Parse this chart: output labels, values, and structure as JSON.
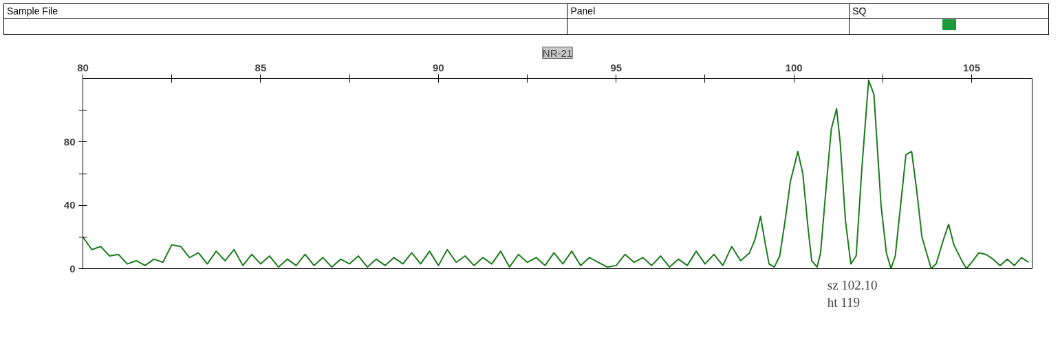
{
  "chart_data": {
    "type": "line",
    "title": "NR-21",
    "annotations": [
      "Sample File",
      "Panel",
      "SQ",
      "sz 102.10",
      "ht 119"
    ],
    "series": [
      {
        "color": "#1a7a1a",
        "x": [
          80,
          80.25,
          80.5,
          80.75,
          81,
          81.25,
          81.5,
          81.75,
          82,
          82.25,
          82.5,
          82.75,
          83,
          83.25,
          83.5,
          83.75,
          84,
          84.25,
          84.5,
          84.75,
          85,
          85.25,
          85.5,
          85.75,
          86,
          86.25,
          86.5,
          86.75,
          87,
          87.25,
          87.5,
          87.75,
          88,
          88.25,
          88.5,
          88.75,
          89,
          89.25,
          89.5,
          89.75,
          90,
          90.25,
          90.5,
          90.75,
          91,
          91.25,
          91.5,
          91.75,
          92,
          92.25,
          92.5,
          92.75,
          93,
          93.25,
          93.5,
          93.75,
          94,
          94.25,
          94.5,
          94.75,
          95,
          95.25,
          95.5,
          95.75,
          96,
          96.25,
          96.5,
          96.75,
          97,
          97.25,
          97.5,
          97.75,
          98,
          98.25,
          98.5,
          98.75,
          98.9,
          99.06,
          99.2,
          99.3,
          99.45,
          99.6,
          99.75,
          99.9,
          100.11,
          100.25,
          100.4,
          100.5,
          100.65,
          100.75,
          100.9,
          101.05,
          101.2,
          101.3,
          101.45,
          101.6,
          101.75,
          101.9,
          102.1,
          102.25,
          102.45,
          102.6,
          102.73,
          102.85,
          103.0,
          103.15,
          103.31,
          103.45,
          103.6,
          103.86,
          104.0,
          104.2,
          104.35,
          104.5,
          104.7,
          104.85,
          105.0,
          105.2,
          105.4,
          105.6,
          105.8,
          106.0,
          106.2,
          106.4,
          106.6
        ],
        "values": [
          20,
          12,
          14,
          8,
          9,
          3,
          5,
          2,
          6,
          4,
          15,
          14,
          7,
          10,
          3,
          11,
          5,
          12,
          2,
          9,
          3,
          8,
          1,
          6,
          2,
          9,
          2,
          7,
          1,
          6,
          3,
          8,
          1,
          6,
          2,
          7,
          3,
          10,
          3,
          11,
          2,
          12,
          4,
          8,
          2,
          7,
          3,
          11,
          1,
          9,
          4,
          7,
          2,
          10,
          3,
          11,
          2,
          7,
          4,
          1,
          2,
          9,
          4,
          7,
          2,
          8,
          1,
          6,
          2,
          11,
          3,
          9,
          2,
          14,
          5,
          10,
          18,
          33,
          15,
          3,
          1,
          8,
          30,
          55,
          74,
          60,
          25,
          5,
          1,
          10,
          50,
          88,
          101,
          80,
          30,
          3,
          8,
          60,
          119,
          110,
          40,
          10,
          0,
          8,
          40,
          72,
          74,
          50,
          20,
          0,
          3,
          18,
          28,
          15,
          6,
          0,
          4,
          10,
          9,
          6,
          2,
          6,
          2,
          7,
          4
        ]
      }
    ],
    "xlim": [
      80,
      106.7
    ],
    "ylim": [
      0,
      120
    ],
    "xticks": [
      80,
      {
        "value": 82.5,
        "label": null
      },
      85,
      {
        "value": 87.5,
        "label": null
      },
      90,
      {
        "value": 92.5,
        "label": null
      },
      95,
      {
        "value": 97.5,
        "label": null
      },
      100,
      {
        "value": 102.5,
        "label": null
      },
      105
    ],
    "yticks": [
      0,
      {
        "value": 20,
        "label": null
      },
      40,
      {
        "value": 60,
        "label": null
      },
      80,
      {
        "value": 100,
        "label": null
      }
    ],
    "grid": false,
    "marker": "none",
    "line_style": "solid"
  }
}
